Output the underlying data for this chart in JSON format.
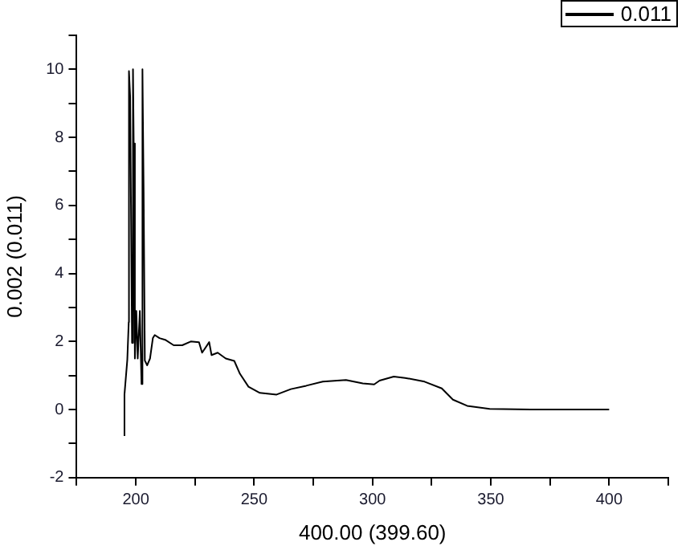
{
  "chart_data": {
    "type": "line",
    "xlabel": "400.00 (399.60)",
    "ylabel": "0.002 (0.011)",
    "xlim": [
      175,
      425
    ],
    "ylim": [
      -2,
      11
    ],
    "xticks": [
      {
        "value": 175,
        "label": null
      },
      200,
      {
        "value": 225,
        "label": null
      },
      250,
      {
        "value": 275,
        "label": null
      },
      300,
      {
        "value": 325,
        "label": null
      },
      350,
      {
        "value": 375,
        "label": null
      },
      400,
      {
        "value": 425,
        "label": null
      }
    ],
    "yticks": [
      -2,
      {
        "value": -1,
        "label": null
      },
      0,
      {
        "value": 1,
        "label": null
      },
      2,
      {
        "value": 3,
        "label": null
      },
      4,
      {
        "value": 5,
        "label": null
      },
      6,
      {
        "value": 7,
        "label": null
      },
      8,
      {
        "value": 9,
        "label": null
      },
      10,
      {
        "value": 11,
        "label": null
      }
    ],
    "grid": false,
    "legend": "top right",
    "marker": "none",
    "line_style": "solid",
    "series": [
      {
        "name": "0.011",
        "color": "#000000",
        "x": [
          195.2,
          195.2,
          196.4,
          197,
          197.1,
          197.6,
          198.4,
          198.8,
          199.1,
          199.6,
          200.2,
          200.8,
          201.7,
          202.4,
          202.7,
          202.9,
          203.3,
          203.8,
          204.8,
          206,
          207.2,
          208,
          210,
          212.4,
          216,
          219.6,
          223.2,
          226.7,
          228,
          231,
          232,
          234.6,
          238,
          241.6,
          244,
          247.6,
          252.4,
          259.5,
          265.5,
          272,
          279,
          288.8,
          295.9,
          300.7,
          303,
          309,
          313.8,
          322,
          329.3,
          334,
          340,
          349.5,
          367,
          400
        ],
        "values": [
          -0.78,
          0.44,
          1.46,
          2.57,
          9.95,
          9.2,
          1.96,
          10,
          7.82,
          1.5,
          2.9,
          1.5,
          2.9,
          0.75,
          2.93,
          10,
          6.38,
          1.44,
          1.3,
          1.5,
          2.1,
          2.19,
          2.1,
          2.05,
          1.89,
          1.89,
          2.0,
          1.98,
          1.67,
          1.98,
          1.6,
          1.67,
          1.5,
          1.43,
          1.05,
          0.67,
          0.49,
          0.44,
          0.6,
          0.7,
          0.82,
          0.87,
          0.77,
          0.74,
          0.85,
          0.97,
          0.93,
          0.82,
          0.62,
          0.29,
          0.11,
          0.02,
          0,
          0
        ]
      }
    ]
  }
}
